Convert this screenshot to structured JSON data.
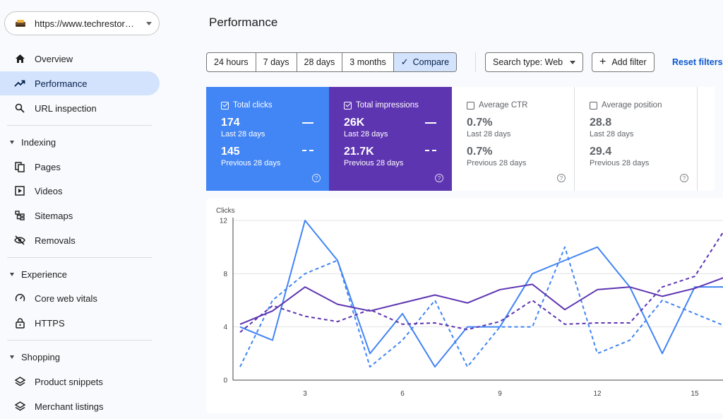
{
  "property": {
    "url": "https://www.techrestor…"
  },
  "nav": {
    "overview": "Overview",
    "performance": "Performance",
    "url_inspection": "URL inspection",
    "indexing": "Indexing",
    "pages": "Pages",
    "videos": "Videos",
    "sitemaps": "Sitemaps",
    "removals": "Removals",
    "experience": "Experience",
    "core_web_vitals": "Core web vitals",
    "https": "HTTPS",
    "shopping": "Shopping",
    "product_snippets": "Product snippets",
    "merchant_listings": "Merchant listings"
  },
  "header": {
    "title": "Performance"
  },
  "filters": {
    "ranges": [
      "24 hours",
      "7 days",
      "28 days",
      "3 months",
      "Compare"
    ],
    "selected": "Compare",
    "search_type": "Search type: Web",
    "add_filter": "Add filter",
    "reset": "Reset filters"
  },
  "metrics": [
    {
      "label": "Total clicks",
      "current": "174",
      "current_label": "Last 28 days",
      "previous": "145",
      "previous_label": "Previous 28 days",
      "checked": true,
      "color": "#4285f4"
    },
    {
      "label": "Total impressions",
      "current": "26K",
      "current_label": "Last 28 days",
      "previous": "21.7K",
      "previous_label": "Previous 28 days",
      "checked": true,
      "color": "#5e35b1"
    },
    {
      "label": "Average CTR",
      "current": "0.7%",
      "current_label": "Last 28 days",
      "previous": "0.7%",
      "previous_label": "Previous 28 days",
      "checked": false
    },
    {
      "label": "Average position",
      "current": "28.8",
      "current_label": "Last 28 days",
      "previous": "29.4",
      "previous_label": "Previous 28 days",
      "checked": false
    }
  ],
  "chart_data": {
    "type": "line",
    "ylabel": "Clicks",
    "ylim": [
      0,
      12
    ],
    "yticks": [
      0,
      4,
      8,
      12
    ],
    "xticks": [
      3,
      6,
      9,
      12,
      15
    ],
    "xlim": [
      1,
      16
    ],
    "grid": true,
    "series": [
      {
        "style": "solid",
        "color": "#4285f4",
        "x": [
          1,
          2,
          3,
          4,
          5,
          6,
          7,
          8,
          9,
          10,
          11,
          12,
          13,
          14,
          15,
          16
        ],
        "y": [
          4,
          3,
          12,
          9,
          2,
          5,
          1,
          4,
          4,
          8,
          9,
          10,
          7,
          2,
          7,
          7
        ]
      },
      {
        "style": "dashed",
        "color": "#4285f4",
        "x": [
          1,
          2,
          3,
          4,
          5,
          6,
          7,
          8,
          9,
          10,
          11,
          12,
          13,
          14,
          15,
          16
        ],
        "y": [
          1,
          6,
          8,
          9,
          1,
          3,
          6,
          1,
          4,
          4,
          10,
          2,
          3,
          6,
          5,
          4
        ]
      },
      {
        "style": "solid",
        "color": "#5e35b1",
        "x": [
          1,
          2,
          3,
          4,
          5,
          6,
          7,
          8,
          9,
          10,
          11,
          12,
          13,
          14,
          15,
          16
        ],
        "y": [
          4.2,
          5.2,
          7,
          5.7,
          5.2,
          5.8,
          6.4,
          5.8,
          6.8,
          7.2,
          5.3,
          6.8,
          7,
          6.3,
          6.9,
          7.8
        ]
      },
      {
        "style": "dashed",
        "color": "#5e35b1",
        "x": [
          1,
          2,
          3,
          4,
          5,
          6,
          7,
          8,
          9,
          10,
          11,
          12,
          13,
          14,
          15,
          16
        ],
        "y": [
          3.6,
          5.6,
          4.8,
          4.4,
          5.3,
          4.2,
          4.3,
          3.8,
          4.4,
          6,
          4.2,
          4.3,
          4.3,
          7,
          7.8,
          11.6
        ]
      }
    ]
  }
}
